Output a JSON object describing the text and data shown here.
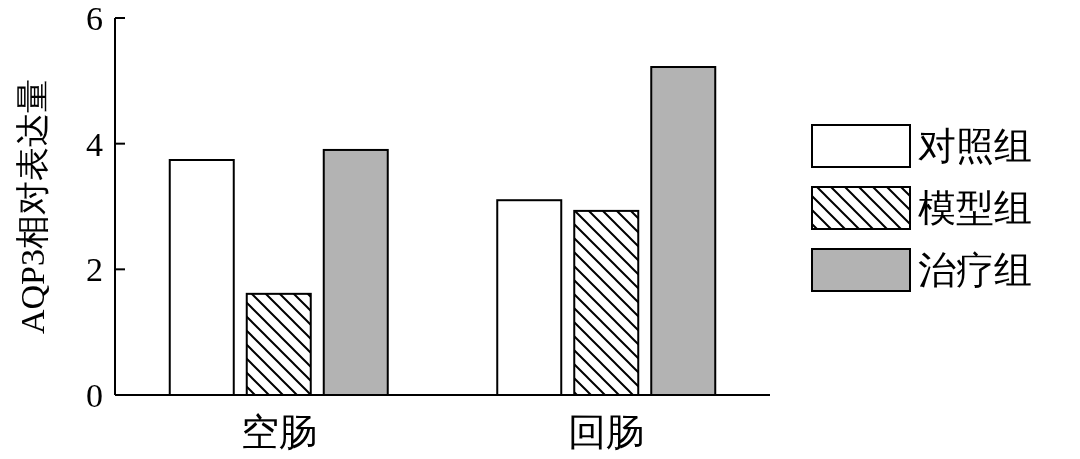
{
  "chart_data": {
    "type": "bar",
    "ylabel": "AQP3相对表达量",
    "categories": [
      "空肠",
      "回肠"
    ],
    "series": [
      {
        "name": "对照组",
        "color": "#ffffff",
        "values": [
          3.74,
          3.1
        ]
      },
      {
        "name": "模型组",
        "color": "#000000",
        "values": [
          1.61,
          2.93
        ]
      },
      {
        "name": "治疗组",
        "color": "#b3b3b3",
        "values": [
          3.9,
          5.22
        ]
      }
    ],
    "ylim": [
      0,
      6
    ],
    "yticks": [
      0,
      2,
      4,
      6
    ],
    "legend": "right",
    "grid": false
  }
}
